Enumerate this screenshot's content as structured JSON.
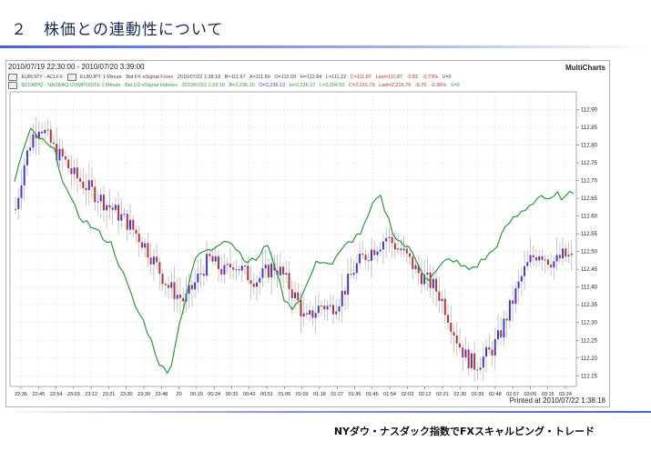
{
  "slide": {
    "title": "２　株価との連動性について",
    "footer": "NYダウ・ナスダック指数でFXスキャルピング・トレード"
  },
  "chart_header": {
    "range": "2010/07/19 22:30:00 - 2010/07/20 3:39:00",
    "brand": "MultiCharts",
    "legend": [
      {
        "items": [
          "EUR/JPY - ACLFX",
          "EUR/JPY 1 Minute",
          "Bid FX eSignal Forex",
          "2010/07/22 1:38:18",
          "B=111.87",
          "A=111.89",
          "O=112.69",
          "H=112.84",
          "L=111.22",
          "C=111.87",
          "Last=111.87",
          "-0.82",
          "-0.73%",
          "V=0"
        ]
      },
      {
        "items": [
          "$COMPQ - NASDAQ COMPOSITE 1 Minute",
          "Bid US eSignal Indexes",
          "2010/07/22 1:23:19",
          "B=2,236.13",
          "O=2,236.13",
          "H=2,236.37",
          "L=2,204.50",
          "C=2,215.79",
          "Last=2,215.79",
          "-6.70",
          "-0.30%",
          "V=0"
        ]
      }
    ],
    "printed": "Printed at 2010/07/22 1:38:18"
  },
  "colors": {
    "candle_up": "#3a3ae0",
    "candle_down": "#c03030",
    "wick": "#b8b8b8",
    "nasdaq_line": "#2a9a3a",
    "grid": "#dcdcdc"
  },
  "chart_data": {
    "type": "candlestick+line",
    "x_ticks": [
      "22:36",
      "22:45",
      "22:54",
      "23:03",
      "23:12",
      "23:21",
      "23:30",
      "23:39",
      "23:48",
      "20",
      "00:15",
      "00:24",
      "00:33",
      "00:42",
      "00:51",
      "01:00",
      "01:09",
      "01:18",
      "01:27",
      "01:36",
      "01:45",
      "01:54",
      "02:03",
      "02:12",
      "02:21",
      "02:30",
      "02:39",
      "02:48",
      "02:57",
      "03:06",
      "03:15",
      "03:24"
    ],
    "y_ticks": [
      "112.90",
      "112.85",
      "112.80",
      "112.75",
      "112.70",
      "112.65",
      "112.60",
      "112.55",
      "112.50",
      "112.45",
      "112.40",
      "112.35",
      "112.30",
      "112.25",
      "112.20",
      "112.15"
    ],
    "ylim": [
      112.12,
      112.95
    ],
    "grid": true,
    "eurjpy_close_path": [
      112.62,
      112.74,
      112.82,
      112.86,
      112.82,
      112.78,
      112.76,
      112.72,
      112.7,
      112.68,
      112.66,
      112.64,
      112.62,
      112.6,
      112.58,
      112.55,
      112.52,
      112.48,
      112.44,
      112.4,
      112.38,
      112.36,
      112.4,
      112.44,
      112.48,
      112.46,
      112.44,
      112.47,
      112.45,
      112.43,
      112.42,
      112.44,
      112.46,
      112.44,
      112.4,
      112.36,
      112.3,
      112.33,
      112.35,
      112.34,
      112.36,
      112.4,
      112.45,
      112.48,
      112.5,
      112.52,
      112.54,
      112.52,
      112.5,
      112.47,
      112.44,
      112.42,
      112.4,
      112.36,
      112.3,
      112.24,
      112.2,
      112.18,
      112.2,
      112.22,
      112.26,
      112.32,
      112.38,
      112.44,
      112.48,
      112.5,
      112.48,
      112.47,
      112.49,
      112.48
    ],
    "nasdaq_path": [
      112.7,
      112.78,
      112.84,
      112.82,
      112.8,
      112.78,
      112.7,
      112.64,
      112.6,
      112.58,
      112.56,
      112.54,
      112.52,
      112.46,
      112.4,
      112.34,
      112.3,
      112.24,
      112.18,
      112.15,
      112.26,
      112.36,
      112.46,
      112.5,
      112.5,
      112.52,
      112.54,
      112.52,
      112.49,
      112.47,
      112.48,
      112.52,
      112.48,
      112.38,
      112.34,
      112.36,
      112.4,
      112.46,
      112.48,
      112.46,
      112.49,
      112.52,
      112.54,
      112.56,
      112.62,
      112.66,
      112.6,
      112.54,
      112.52,
      112.5,
      112.46,
      112.42,
      112.44,
      112.47,
      112.48,
      112.46,
      112.45,
      112.46,
      112.48,
      112.5,
      112.54,
      112.58,
      112.6,
      112.62,
      112.64,
      112.66,
      112.64,
      112.66,
      112.65,
      112.67
    ]
  }
}
